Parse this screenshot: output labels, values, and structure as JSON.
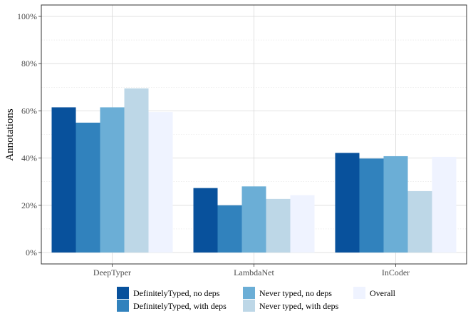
{
  "chart_data": {
    "type": "bar",
    "title": "",
    "xlabel": "",
    "ylabel": "Annotations",
    "ylim": [
      0,
      100
    ],
    "yticks": [
      "0%",
      "20%",
      "40%",
      "60%",
      "80%",
      "100%"
    ],
    "categories": [
      "DeepTyper",
      "LambdaNet",
      "InCoder"
    ],
    "series": [
      {
        "name": "DefinitelyTyped, no deps",
        "color": "#08519c",
        "values": [
          61.5,
          27.3,
          42.2
        ]
      },
      {
        "name": "DefinitelyTyped, with deps",
        "color": "#3182bd",
        "values": [
          55.0,
          20.0,
          39.8
        ]
      },
      {
        "name": "Never typed, no deps",
        "color": "#6baed6",
        "values": [
          61.5,
          28.0,
          40.8
        ]
      },
      {
        "name": "Never typed, with deps",
        "color": "#bdd7e7",
        "values": [
          69.5,
          22.7,
          26.0
        ]
      },
      {
        "name": "Overall",
        "color": "#eff3ff",
        "values": [
          59.5,
          24.3,
          40.5
        ]
      }
    ],
    "legend_position": "bottom",
    "grid": true
  }
}
